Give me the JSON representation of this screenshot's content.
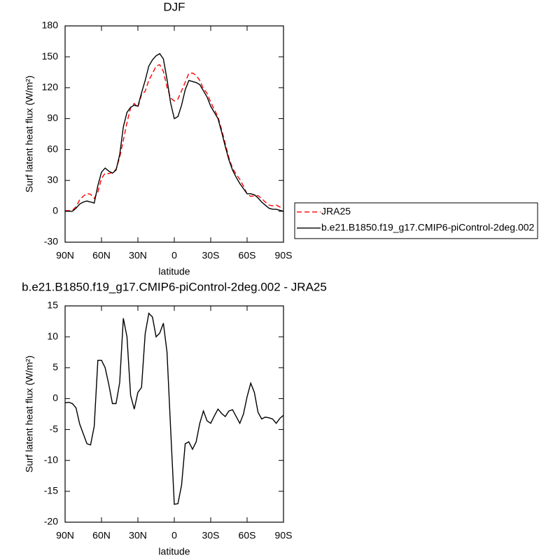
{
  "chart_data": [
    {
      "type": "line",
      "title": "DJF",
      "xlabel": "latitude",
      "ylabel": "Surf latent heat flux (W/m²)",
      "x": [
        90,
        87,
        84,
        81,
        78,
        75,
        72,
        69,
        66,
        63,
        60,
        57,
        54,
        51,
        48,
        45,
        42,
        39,
        36,
        33,
        30,
        27,
        24,
        21,
        18,
        15,
        12,
        9,
        6,
        3,
        0,
        -3,
        -6,
        -9,
        -12,
        -15,
        -18,
        -21,
        -24,
        -27,
        -30,
        -33,
        -36,
        -39,
        -42,
        -45,
        -48,
        -51,
        -54,
        -57,
        -60,
        -63,
        -66,
        -69,
        -72,
        -75,
        -78,
        -81,
        -84,
        -87,
        -90
      ],
      "series": [
        {
          "name": "JRA25",
          "color": "#ff0000",
          "dash": "dashed",
          "values": [
            0.7,
            0.6,
            0.8,
            4.5,
            11.1,
            14.7,
            17.3,
            16.5,
            12.5,
            18.8,
            31.8,
            37,
            36.7,
            37.8,
            40.8,
            52.4,
            69,
            86,
            100.5,
            104.7,
            101,
            113.2,
            116.5,
            127.2,
            133.8,
            141,
            142.4,
            135.8,
            120.5,
            110,
            107.1,
            109,
            117,
            125.3,
            134,
            134.2,
            132,
            127,
            119,
            114.6,
            106,
            98.8,
            91.7,
            79.4,
            65.9,
            52,
            41.8,
            35.9,
            31,
            24.5,
            16.7,
            14.5,
            15,
            15.2,
            12.3,
            9,
            6.1,
            5.3,
            6,
            4.2,
            2.7
          ]
        },
        {
          "name": "b.e21.B1850.f19_g17.CMIP6-piControl-2deg.002",
          "color": "#000000",
          "dash": "solid",
          "values": [
            0,
            0,
            0,
            3,
            7,
            9,
            10,
            9,
            8,
            25,
            38,
            42,
            39,
            37,
            40,
            55,
            82,
            96,
            101,
            103,
            102,
            115,
            127,
            141,
            147,
            151,
            153,
            148,
            128,
            105,
            90,
            92,
            103,
            118,
            127,
            126,
            125,
            123,
            117,
            111,
            102,
            96,
            90,
            77,
            63,
            50,
            40,
            33,
            27,
            22,
            17,
            17,
            16,
            13,
            9,
            6,
            3,
            2,
            2,
            1,
            0
          ]
        }
      ],
      "xlim": [
        90,
        -90
      ],
      "xticks": [
        {
          "value": 90,
          "label": "90N"
        },
        {
          "value": 60,
          "label": "60N"
        },
        {
          "value": 30,
          "label": "30N"
        },
        0,
        {
          "value": -30,
          "label": "30S"
        },
        {
          "value": -60,
          "label": "60S"
        },
        {
          "value": -90,
          "label": "90S"
        }
      ],
      "ylim": [
        -30,
        180
      ],
      "yticks": [
        -30,
        0,
        30,
        60,
        90,
        120,
        150,
        180
      ],
      "legend": "right"
    },
    {
      "type": "line",
      "title": "b.e21.B1850.f19_g17.CMIP6-piControl-2deg.002 - JRA25",
      "xlabel": "latitude",
      "ylabel": "Surf latent heat flux (W/m²)",
      "x": [
        90,
        87,
        84,
        81,
        78,
        75,
        72,
        69,
        66,
        63,
        60,
        57,
        54,
        51,
        48,
        45,
        42,
        39,
        36,
        33,
        30,
        27,
        24,
        21,
        18,
        15,
        12,
        9,
        6,
        3,
        0,
        -3,
        -6,
        -9,
        -12,
        -15,
        -18,
        -21,
        -24,
        -27,
        -30,
        -33,
        -36,
        -39,
        -42,
        -45,
        -48,
        -51,
        -54,
        -57,
        -60,
        -63,
        -66,
        -69,
        -72,
        -75,
        -78,
        -81,
        -84,
        -87,
        -90
      ],
      "values": [
        -0.7,
        -0.6,
        -0.8,
        -1.5,
        -4.1,
        -5.7,
        -7.3,
        -7.5,
        -4.5,
        6.2,
        6.2,
        5,
        2.3,
        -0.8,
        -0.8,
        2.6,
        13,
        10,
        0.5,
        -1.7,
        1,
        1.8,
        10.5,
        13.8,
        13.2,
        10,
        10.6,
        12.2,
        7.5,
        -5,
        -17.1,
        -17,
        -14,
        -7.3,
        -7,
        -8.2,
        -7,
        -4,
        -2,
        -3.6,
        -4,
        -2.8,
        -1.7,
        -2.4,
        -2.9,
        -2,
        -1.8,
        -2.9,
        -4,
        -2.5,
        0.3,
        2.5,
        1,
        -2.2,
        -3.3,
        -3,
        -3.1,
        -3.3,
        -4,
        -3.2,
        -2.7
      ],
      "color": "#000000",
      "xlim": [
        90,
        -90
      ],
      "xticks": [
        {
          "value": 90,
          "label": "90N"
        },
        {
          "value": 60,
          "label": "60N"
        },
        {
          "value": 30,
          "label": "30N"
        },
        0,
        {
          "value": -30,
          "label": "30S"
        },
        {
          "value": -60,
          "label": "60S"
        },
        {
          "value": -90,
          "label": "90S"
        }
      ],
      "ylim": [
        -20,
        15
      ],
      "yticks": [
        -20,
        -15,
        -10,
        -5,
        0,
        5,
        10,
        15
      ]
    }
  ]
}
